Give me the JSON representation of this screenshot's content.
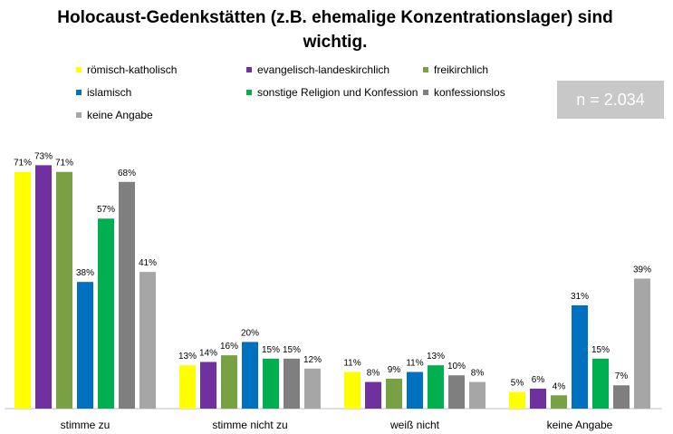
{
  "chart_data": {
    "type": "bar",
    "title": "Holocaust-Gedenkstätten (z.B. ehemalige Konzentrationslager) sind wichtig.",
    "note": "n = 2.034",
    "categories": [
      "stimme zu",
      "stimme nicht zu",
      "weiß nicht",
      "keine Angabe"
    ],
    "unit": "%",
    "series": [
      {
        "name": "römisch-katholisch",
        "color": "#ffff00",
        "values": [
          71,
          13,
          11,
          5
        ]
      },
      {
        "name": "evangelisch-landeskirchlich",
        "color": "#7030a0",
        "values": [
          73,
          14,
          8,
          6
        ]
      },
      {
        "name": "freikirchlich",
        "color": "#77a143",
        "values": [
          71,
          16,
          9,
          4
        ]
      },
      {
        "name": "islamisch",
        "color": "#0070c0",
        "values": [
          38,
          20,
          11,
          31
        ]
      },
      {
        "name": "sonstige Religion und Konfession",
        "color": "#00b050",
        "values": [
          57,
          15,
          13,
          15
        ]
      },
      {
        "name": "konfessionslos",
        "color": "#7f7f7f",
        "values": [
          68,
          15,
          10,
          7
        ]
      },
      {
        "name": "keine Angabe",
        "color": "#a6a6a6",
        "values": [
          41,
          12,
          8,
          39
        ]
      }
    ],
    "legend_position": "top",
    "grid": false
  }
}
